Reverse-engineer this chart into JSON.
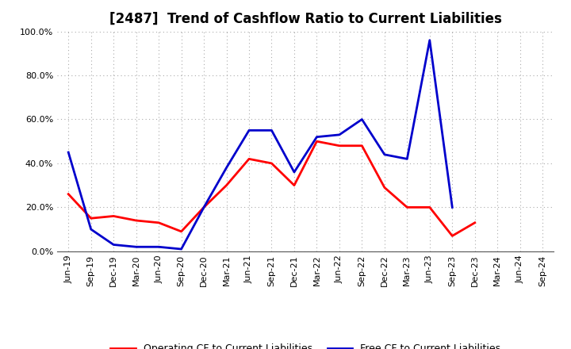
{
  "title": "[2487]  Trend of Cashflow Ratio to Current Liabilities",
  "x_labels": [
    "Jun-19",
    "Sep-19",
    "Dec-19",
    "Mar-20",
    "Jun-20",
    "Sep-20",
    "Dec-20",
    "Mar-21",
    "Jun-21",
    "Sep-21",
    "Dec-21",
    "Mar-22",
    "Jun-22",
    "Sep-22",
    "Dec-22",
    "Mar-23",
    "Jun-23",
    "Sep-23",
    "Dec-23",
    "Mar-24",
    "Jun-24",
    "Sep-24"
  ],
  "operating_cf": [
    0.26,
    0.15,
    0.16,
    0.14,
    0.13,
    0.09,
    0.2,
    0.3,
    0.42,
    0.4,
    0.3,
    0.5,
    0.48,
    0.48,
    0.29,
    0.2,
    0.2,
    0.07,
    0.13,
    null,
    null,
    null
  ],
  "free_cf": [
    0.45,
    0.1,
    0.03,
    0.02,
    0.02,
    0.01,
    0.2,
    0.38,
    0.55,
    0.55,
    0.36,
    0.52,
    0.53,
    0.6,
    0.44,
    0.42,
    0.96,
    0.2,
    null,
    null,
    null,
    null
  ],
  "operating_cf_color": "#ff0000",
  "free_cf_color": "#0000cc",
  "ylim": [
    0.0,
    1.0
  ],
  "yticks": [
    0.0,
    0.2,
    0.4,
    0.6,
    0.8,
    1.0
  ],
  "ytick_labels": [
    "0.0%",
    "20.0%",
    "40.0%",
    "60.0%",
    "80.0%",
    "100.0%"
  ],
  "background_color": "#ffffff",
  "plot_bg_color": "#ffffff",
  "grid_color": "#aaaaaa",
  "legend_op": "Operating CF to Current Liabilities",
  "legend_free": "Free CF to Current Liabilities",
  "title_fontsize": 12,
  "tick_fontsize": 8,
  "legend_fontsize": 9,
  "linewidth": 2.0
}
